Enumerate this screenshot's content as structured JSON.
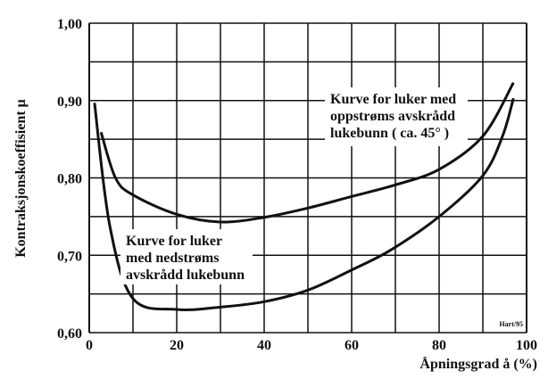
{
  "chart_data": {
    "type": "line",
    "title": "",
    "xlabel": "Åpningsgrad å (%)",
    "ylabel": "Kontraksjonskoeffisient  μ",
    "xlim": [
      0,
      100
    ],
    "ylim": [
      0.6,
      1.0
    ],
    "x_ticks": [
      "0",
      "20",
      "40",
      "60",
      "80",
      "100"
    ],
    "y_ticks": [
      "0,60",
      "0,70",
      "0,80",
      "0,90",
      "1,00"
    ],
    "grid": true,
    "grid_x_step": 10,
    "grid_y_step": 0.05,
    "line_color": "#111111",
    "series": [
      {
        "name": "Kurve for luker med oppstrøms avskrådd lukebunn ( ca. 45° )",
        "label_lines": [
          "Kurve for luker med",
          "oppstrøms avskrådd",
          "lukebunn ( ca. 45° )"
        ],
        "x": [
          2.7,
          6,
          10,
          20,
          30,
          40,
          50,
          60,
          70,
          80,
          90,
          97
        ],
        "y": [
          0.859,
          0.8,
          0.778,
          0.753,
          0.743,
          0.749,
          0.761,
          0.776,
          0.791,
          0.811,
          0.854,
          0.923
        ]
      },
      {
        "name": "Kurve for luker med nedstrøms avskrådd lukebunn",
        "label_lines": [
          "Kurve for luker",
          "med nedstrøms",
          "avskrådd lukebunn"
        ],
        "x": [
          1.2,
          4.7,
          10,
          20,
          30,
          40,
          50,
          60,
          69,
          80,
          90,
          94.5,
          97
        ],
        "y": [
          0.897,
          0.738,
          0.644,
          0.63,
          0.633,
          0.64,
          0.655,
          0.681,
          0.707,
          0.75,
          0.803,
          0.854,
          0.903
        ]
      }
    ],
    "credit": "Hart/95"
  }
}
